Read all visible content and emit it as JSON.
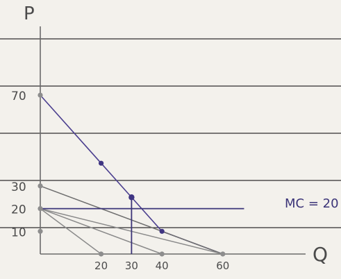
{
  "chart_data": {
    "type": "line",
    "title": "",
    "xlabel": "Q",
    "ylabel": "P",
    "x_ticks": [
      "20",
      "30",
      "40",
      "60"
    ],
    "y_ticks": [
      "10",
      "20",
      "30",
      "70"
    ],
    "xlim": [
      0,
      75
    ],
    "ylim": [
      0,
      80
    ],
    "series": [
      {
        "points": [
          [
            0,
            70
          ],
          [
            20,
            40
          ],
          [
            30,
            25
          ],
          [
            40,
            10
          ],
          [
            60,
            0
          ]
        ],
        "color": "#4b3f8f"
      },
      {
        "points": [
          [
            0,
            30
          ],
          [
            60,
            0
          ]
        ],
        "color": "#6e6e6e"
      },
      {
        "points": [
          [
            0,
            20
          ],
          [
            20,
            0
          ]
        ],
        "color": "#8a8a8a"
      },
      {
        "points": [
          [
            0,
            20
          ],
          [
            40,
            0
          ]
        ],
        "color": "#8a8a8a"
      },
      {
        "points": [
          [
            0,
            20
          ],
          [
            60,
            0
          ]
        ],
        "color": "#8a8a8a"
      }
    ],
    "mc_line": {
      "label": "MC = 20",
      "y": 20,
      "x_from": 0,
      "x_to": 67,
      "color": "#3b3478"
    },
    "drop_line": {
      "x": 30,
      "y_from": 0,
      "y_to": 25,
      "color": "#3b3478"
    },
    "dots": [
      {
        "x": 0,
        "y": 70
      },
      {
        "x": 0,
        "y": 30
      },
      {
        "x": 0,
        "y": 20
      },
      {
        "x": 0,
        "y": 10
      },
      {
        "x": 20,
        "y": 40
      },
      {
        "x": 30,
        "y": 25
      },
      {
        "x": 40,
        "y": 10
      },
      {
        "x": 20,
        "y": 0
      },
      {
        "x": 40,
        "y": 0
      },
      {
        "x": 60,
        "y": 0
      }
    ],
    "paper_line_color": "#2e2e2e"
  }
}
